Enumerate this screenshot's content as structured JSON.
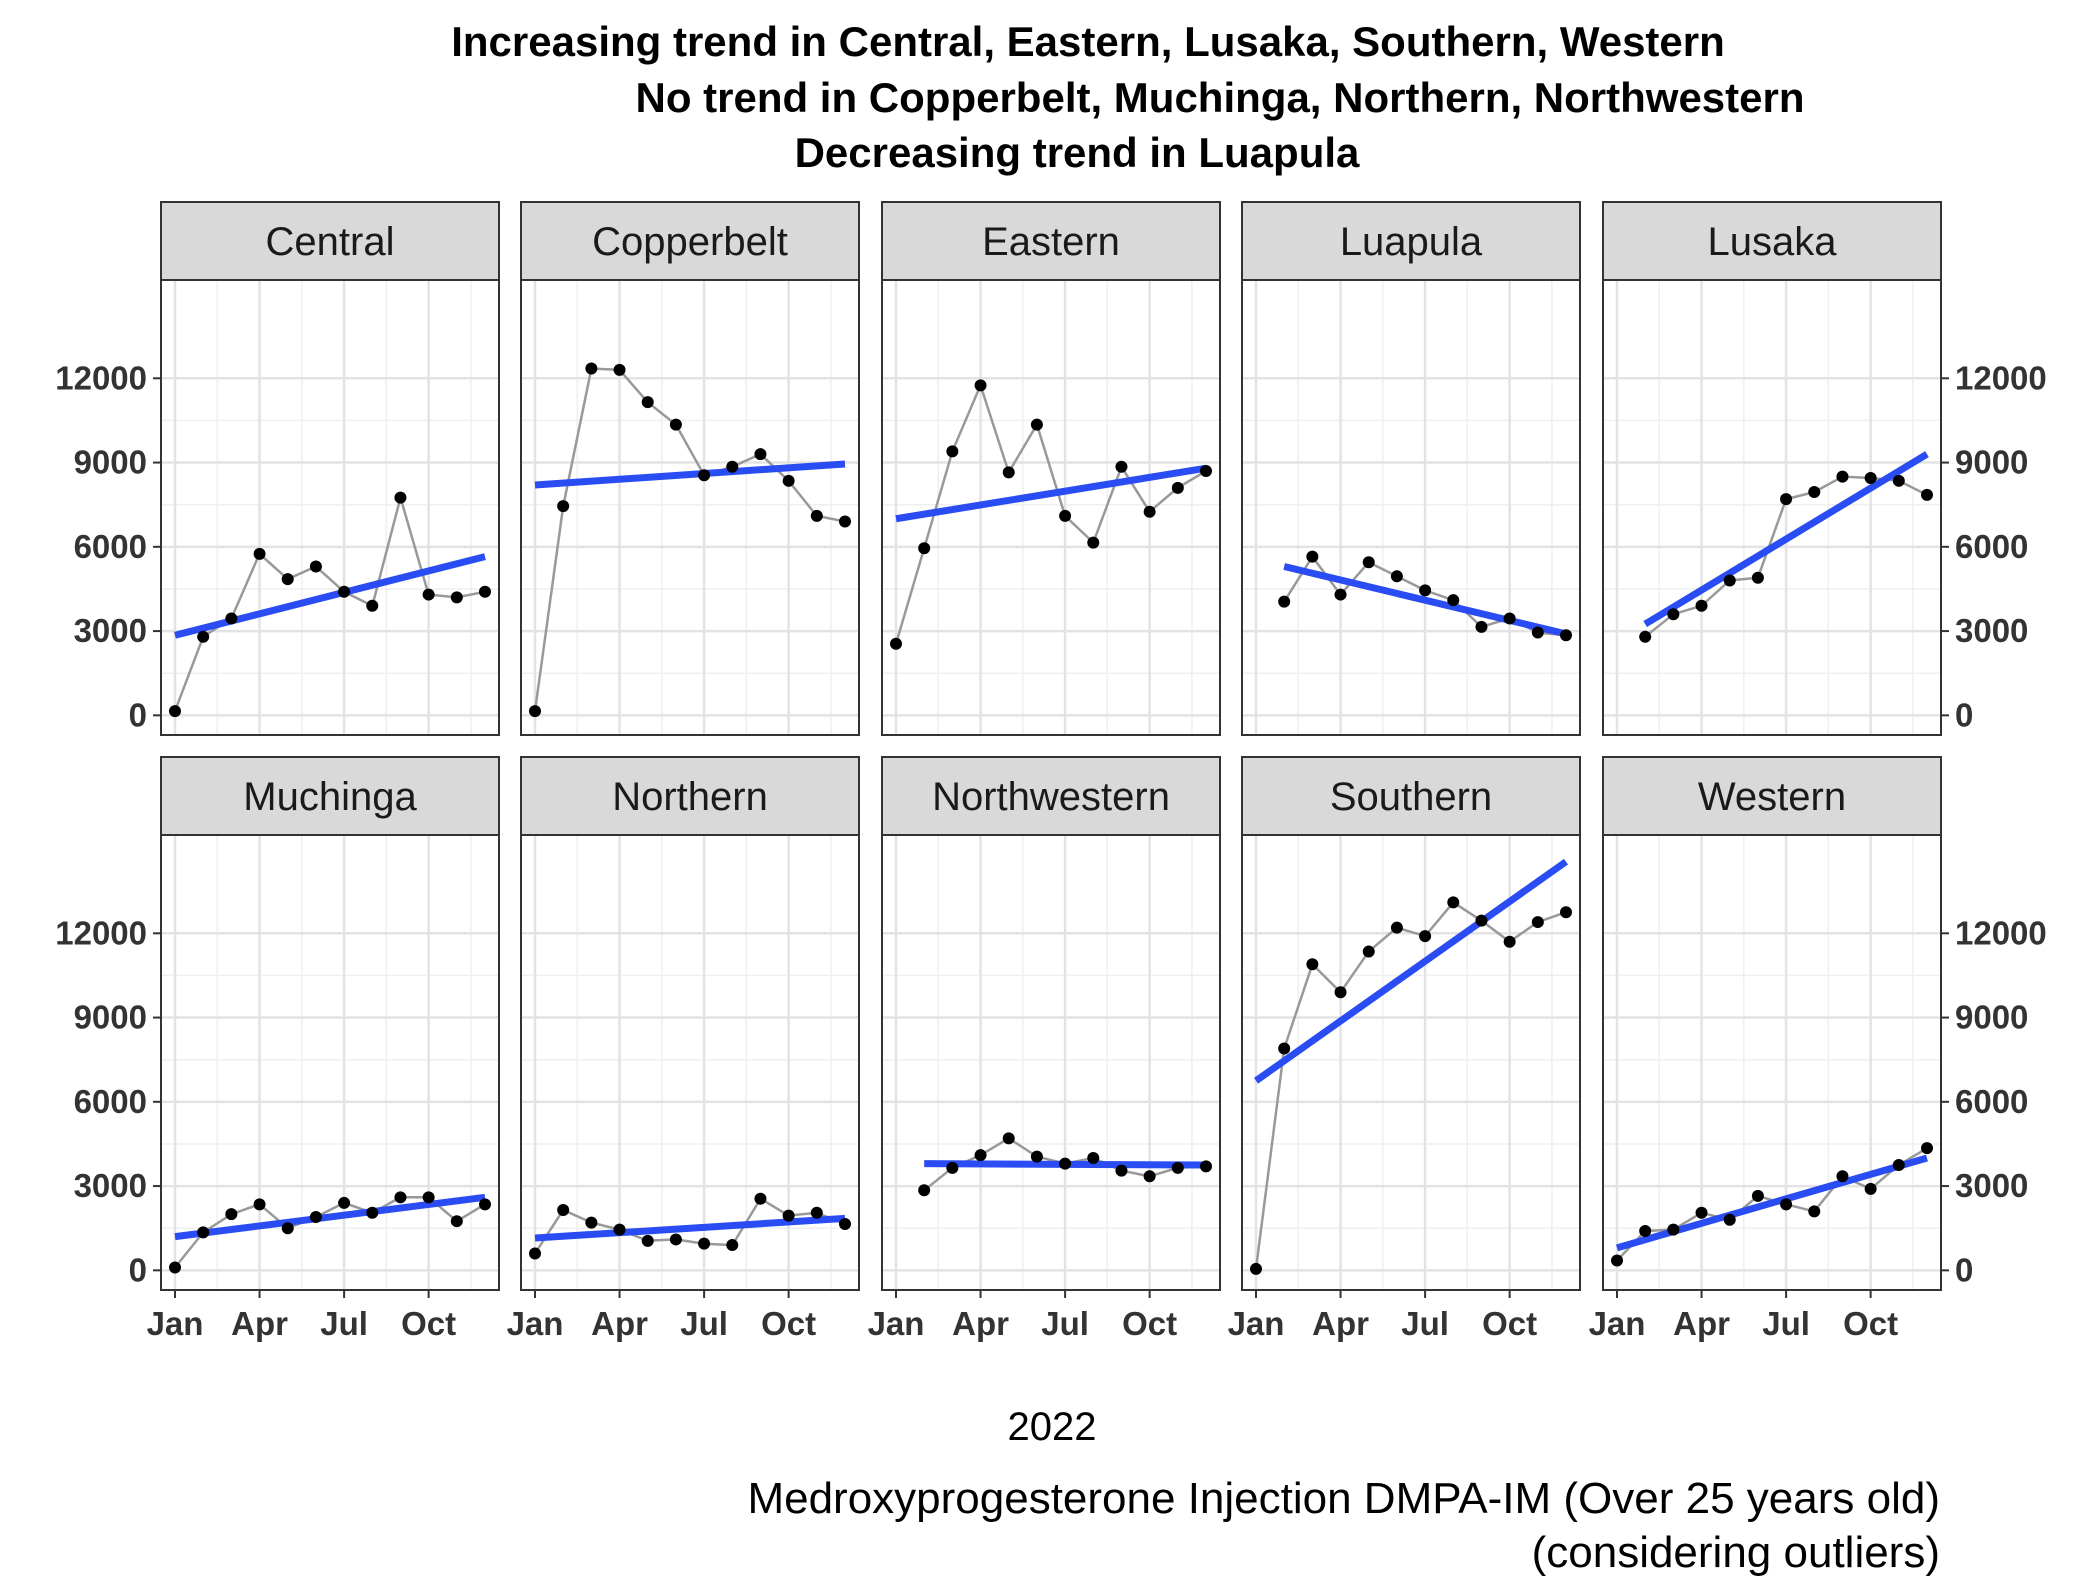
{
  "chart_data": {
    "type": "line",
    "title_lines": [
      "Increasing trend in Central, Eastern, Lusaka, Southern, Western",
      "No trend in Copperbelt, Muchinga, Northern, Northwestern",
      "Decreasing trend in Luapula"
    ],
    "xlabel": "2022",
    "caption_lines": [
      "Medroxyprogesterone Injection DMPA-IM (Over 25 years old)",
      "(considering outliers)"
    ],
    "x_ticks": [
      "Jan",
      "Apr",
      "Jul",
      "Oct"
    ],
    "y_ticks": [
      0,
      3000,
      6000,
      9000,
      12000
    ],
    "ylim": [
      -700,
      15500
    ],
    "x_categories": [
      "Jan",
      "Feb",
      "Mar",
      "Apr",
      "May",
      "Jun",
      "Jul",
      "Aug",
      "Sep",
      "Oct",
      "Nov",
      "Dec"
    ],
    "colors": {
      "observed": "#999999",
      "points": "#000000",
      "trend": "#2a4cf3",
      "grid": "#e3e3e3",
      "strip": "#d9d9d9"
    },
    "grid": true,
    "facets": [
      {
        "name": "Central",
        "values": [
          150,
          2800,
          3450,
          5750,
          4850,
          5300,
          4400,
          3900,
          7750,
          4300,
          4200,
          4400
        ],
        "trend": [
          2850,
          5650
        ]
      },
      {
        "name": "Copperbelt",
        "values": [
          150,
          7450,
          12350,
          12300,
          11150,
          10350,
          8550,
          8850,
          9300,
          8350,
          7100,
          6900
        ],
        "trend": [
          8200,
          8950
        ]
      },
      {
        "name": "Eastern",
        "values": [
          2550,
          5950,
          9400,
          11750,
          8650,
          10350,
          7100,
          6150,
          8850,
          7250,
          8100,
          8700
        ],
        "trend": [
          7000,
          8800
        ]
      },
      {
        "name": "Luapula",
        "values": [
          null,
          4050,
          5650,
          4300,
          5450,
          4950,
          4450,
          4100,
          3150,
          3450,
          2950,
          2850
        ],
        "trend": [
          5300,
          2900
        ]
      },
      {
        "name": "Lusaka",
        "values": [
          null,
          2800,
          3600,
          3900,
          4800,
          4900,
          7700,
          7950,
          8500,
          8450,
          8350,
          7850
        ],
        "trend": [
          3250,
          9300
        ]
      },
      {
        "name": "Muchinga",
        "values": [
          100,
          1350,
          2000,
          2350,
          1500,
          1900,
          2400,
          2050,
          2600,
          2600,
          1750,
          2350
        ],
        "trend": [
          1200,
          2600
        ]
      },
      {
        "name": "Northern",
        "values": [
          600,
          2150,
          1700,
          1450,
          1050,
          1100,
          950,
          900,
          2550,
          1950,
          2050,
          1650
        ],
        "trend": [
          1150,
          1850
        ]
      },
      {
        "name": "Northwestern",
        "values": [
          null,
          2850,
          3650,
          4100,
          4700,
          4050,
          3800,
          4000,
          3550,
          3350,
          3650,
          3700
        ],
        "trend": [
          3800,
          3750
        ]
      },
      {
        "name": "Southern",
        "values": [
          50,
          7900,
          10900,
          9900,
          11350,
          12200,
          11900,
          13100,
          12450,
          11700,
          12400,
          12750
        ],
        "trend": [
          6750,
          14550
        ]
      },
      {
        "name": "Western",
        "values": [
          350,
          1400,
          1450,
          2050,
          1800,
          2650,
          2350,
          2100,
          3350,
          2900,
          3750,
          4350
        ],
        "trend": [
          800,
          4000
        ]
      }
    ]
  }
}
